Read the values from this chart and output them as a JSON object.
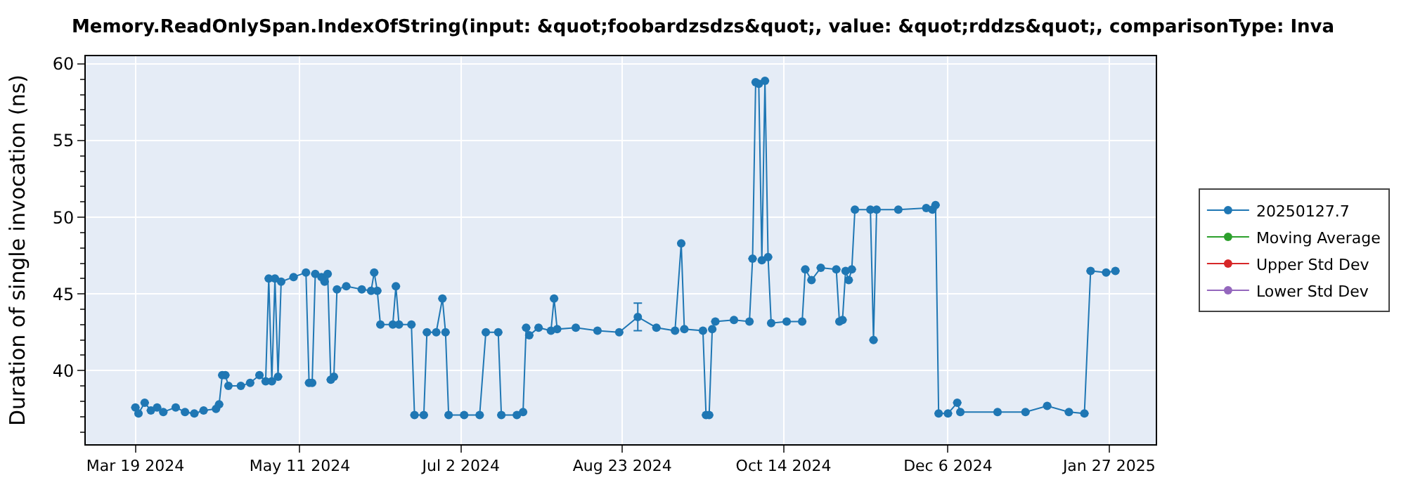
{
  "chart_data": {
    "type": "line",
    "title": "Memory.ReadOnlySpan.IndexOfString(input: &quot;foobardzsdzs&quot;, value: &quot;rddzs&quot;, comparisonType: Inva",
    "ylabel": "Duration of single invocation (ns)",
    "x": [
      "2024-03-19",
      "2024-03-20",
      "2024-03-22",
      "2024-03-24",
      "2024-03-26",
      "2024-03-28",
      "2024-04-01",
      "2024-04-04",
      "2024-04-07",
      "2024-04-10",
      "2024-04-14",
      "2024-04-15",
      "2024-04-16",
      "2024-04-17",
      "2024-04-18",
      "2024-04-22",
      "2024-04-25",
      "2024-04-28",
      "2024-04-30",
      "2024-05-01",
      "2024-05-02",
      "2024-05-03",
      "2024-05-04",
      "2024-05-05",
      "2024-05-09",
      "2024-05-13",
      "2024-05-14",
      "2024-05-15",
      "2024-05-16",
      "2024-05-18",
      "2024-05-19",
      "2024-05-20",
      "2024-05-21",
      "2024-05-22",
      "2024-05-23",
      "2024-05-26",
      "2024-05-31",
      "2024-06-03",
      "2024-06-04",
      "2024-06-05",
      "2024-06-06",
      "2024-06-10",
      "2024-06-11",
      "2024-06-12",
      "2024-06-16",
      "2024-06-17",
      "2024-06-20",
      "2024-06-21",
      "2024-06-24",
      "2024-06-26",
      "2024-06-27",
      "2024-06-28",
      "2024-07-03",
      "2024-07-08",
      "2024-07-10",
      "2024-07-14",
      "2024-07-15",
      "2024-07-20",
      "2024-07-22",
      "2024-07-23",
      "2024-07-24",
      "2024-07-27",
      "2024-07-31",
      "2024-08-01",
      "2024-08-02",
      "2024-08-08",
      "2024-08-15",
      "2024-08-22",
      "2024-08-28",
      "2024-09-03",
      "2024-09-09",
      "2024-09-11",
      "2024-09-12",
      "2024-09-18",
      "2024-09-19",
      "2024-09-20",
      "2024-09-21",
      "2024-09-22",
      "2024-09-28",
      "2024-10-03",
      "2024-10-04",
      "2024-10-05",
      "2024-10-06",
      "2024-10-07",
      "2024-10-08",
      "2024-10-09",
      "2024-10-10",
      "2024-10-15",
      "2024-10-20",
      "2024-10-21",
      "2024-10-23",
      "2024-10-26",
      "2024-10-31",
      "2024-11-01",
      "2024-11-02",
      "2024-11-03",
      "2024-11-04",
      "2024-11-05",
      "2024-11-06",
      "2024-11-11",
      "2024-11-12",
      "2024-11-13",
      "2024-11-20",
      "2024-11-29",
      "2024-12-01",
      "2024-12-02",
      "2024-12-03",
      "2024-12-06",
      "2024-12-09",
      "2024-12-10",
      "2024-12-22",
      "2024-12-31",
      "2025-01-07",
      "2025-01-14",
      "2025-01-19",
      "2025-01-21",
      "2025-01-26",
      "2025-01-29"
    ],
    "series": [
      {
        "name": "20250127.7",
        "color": "#1f77b4",
        "values": [
          37.6,
          37.2,
          37.9,
          37.4,
          37.6,
          37.3,
          37.6,
          37.3,
          37.2,
          37.4,
          37.5,
          37.8,
          39.7,
          39.7,
          39.0,
          39.0,
          39.2,
          39.7,
          39.3,
          46.0,
          39.3,
          46.0,
          39.6,
          45.8,
          46.1,
          46.4,
          39.2,
          39.2,
          46.3,
          46.1,
          45.8,
          46.3,
          39.4,
          39.6,
          45.3,
          45.5,
          45.3,
          45.2,
          46.4,
          45.2,
          43.0,
          43.0,
          45.5,
          43.0,
          43.0,
          37.1,
          37.1,
          42.5,
          42.5,
          44.7,
          42.5,
          37.1,
          37.1,
          37.1,
          42.5,
          42.5,
          37.1,
          37.1,
          37.3,
          42.8,
          42.3,
          42.8,
          42.6,
          44.7,
          42.7,
          42.8,
          42.6,
          42.5,
          43.5,
          42.8,
          42.6,
          48.3,
          42.7,
          42.6,
          37.1,
          37.1,
          42.7,
          43.2,
          43.3,
          43.2,
          47.3,
          58.8,
          58.7,
          47.2,
          58.9,
          47.4,
          43.1,
          43.2,
          43.2,
          46.6,
          45.9,
          46.7,
          46.6,
          43.2,
          43.3,
          46.5,
          45.9,
          46.6,
          50.5,
          50.5,
          42.0,
          50.5,
          50.5,
          50.6,
          50.5,
          50.8,
          37.2,
          37.2,
          37.9,
          37.3,
          37.3,
          37.3,
          37.7,
          37.3,
          37.2,
          46.5,
          46.4,
          46.5
        ],
        "errors": [
          null,
          null,
          null,
          null,
          null,
          null,
          null,
          null,
          null,
          null,
          null,
          null,
          null,
          null,
          null,
          null,
          null,
          null,
          null,
          null,
          null,
          null,
          null,
          null,
          null,
          null,
          null,
          null,
          null,
          null,
          null,
          null,
          null,
          null,
          null,
          null,
          null,
          null,
          null,
          null,
          null,
          null,
          null,
          null,
          null,
          null,
          null,
          null,
          null,
          null,
          null,
          null,
          null,
          null,
          null,
          null,
          null,
          null,
          null,
          null,
          null,
          null,
          null,
          null,
          null,
          null,
          null,
          null,
          0.9,
          null,
          null,
          null,
          null,
          null,
          null,
          null,
          null,
          null,
          null,
          null,
          null,
          null,
          null,
          null,
          null,
          null,
          null,
          null,
          null,
          null,
          null,
          null,
          null,
          null,
          null,
          null,
          null,
          null,
          null,
          null,
          null,
          null,
          null,
          null,
          null,
          null,
          null,
          null,
          null,
          null,
          null,
          null,
          null,
          null,
          null,
          null,
          null,
          null
        ]
      },
      {
        "name": "Moving Average",
        "color": "#2ca02c",
        "values": [
          null,
          null,
          null,
          null,
          null,
          null,
          null,
          null,
          null,
          null,
          null,
          null,
          null,
          null,
          null,
          null,
          null,
          null,
          null,
          null,
          null,
          null,
          null,
          null,
          null,
          null,
          null,
          null,
          null,
          null,
          null,
          null,
          null,
          null,
          null,
          null,
          null,
          null,
          null,
          null,
          null,
          null,
          null,
          null,
          null,
          null,
          null,
          null,
          null,
          null,
          null,
          null,
          null,
          null,
          null,
          null,
          null,
          null,
          null,
          null,
          null,
          null,
          null,
          null,
          null,
          null,
          null,
          null,
          null,
          null,
          null,
          null,
          null,
          null,
          null,
          null,
          null,
          null,
          null,
          null,
          null,
          null,
          null,
          null,
          null,
          null,
          null,
          null,
          null,
          null,
          null,
          null,
          null,
          null,
          null,
          null,
          null,
          null,
          null,
          null,
          null,
          null,
          null,
          null,
          null,
          null,
          null,
          null,
          null,
          null,
          null,
          null,
          null,
          null,
          null,
          null,
          null,
          null
        ]
      },
      {
        "name": "Upper Std Dev",
        "color": "#d62728",
        "values": [
          null,
          null,
          null,
          null,
          null,
          null,
          null,
          null,
          null,
          null,
          null,
          null,
          null,
          null,
          null,
          null,
          null,
          null,
          null,
          null,
          null,
          null,
          null,
          null,
          null,
          null,
          null,
          null,
          null,
          null,
          null,
          null,
          null,
          null,
          null,
          null,
          null,
          null,
          null,
          null,
          null,
          null,
          null,
          null,
          null,
          null,
          null,
          null,
          null,
          null,
          null,
          null,
          null,
          null,
          null,
          null,
          null,
          null,
          null,
          null,
          null,
          null,
          null,
          null,
          null,
          null,
          null,
          null,
          null,
          null,
          null,
          null,
          null,
          null,
          null,
          null,
          null,
          null,
          null,
          null,
          null,
          null,
          null,
          null,
          null,
          null,
          null,
          null,
          null,
          null,
          null,
          null,
          null,
          null,
          null,
          null,
          null,
          null,
          null,
          null,
          null,
          null,
          null,
          null,
          null,
          null,
          null,
          null,
          null,
          null,
          null,
          null,
          null,
          null,
          null,
          null,
          null,
          null
        ]
      },
      {
        "name": "Lower Std Dev",
        "color": "#9467bd",
        "values": [
          null,
          null,
          null,
          null,
          null,
          null,
          null,
          null,
          null,
          null,
          null,
          null,
          null,
          null,
          null,
          null,
          null,
          null,
          null,
          null,
          null,
          null,
          null,
          null,
          null,
          null,
          null,
          null,
          null,
          null,
          null,
          null,
          null,
          null,
          null,
          null,
          null,
          null,
          null,
          null,
          null,
          null,
          null,
          null,
          null,
          null,
          null,
          null,
          null,
          null,
          null,
          null,
          null,
          null,
          null,
          null,
          null,
          null,
          null,
          null,
          null,
          null,
          null,
          null,
          null,
          null,
          null,
          null,
          null,
          null,
          null,
          null,
          null,
          null,
          null,
          null,
          null,
          null,
          null,
          null,
          null,
          null,
          null,
          null,
          null,
          null,
          null,
          null,
          null,
          null,
          null,
          null,
          null,
          null,
          null,
          null,
          null,
          null,
          null,
          null,
          null,
          null,
          null,
          null,
          null,
          null,
          null,
          null,
          null,
          null,
          null,
          null,
          null,
          null,
          null,
          null,
          null,
          null
        ]
      }
    ],
    "xlim": [
      "2024-03-03",
      "2025-02-11"
    ],
    "xticks": [
      {
        "value": "2024-03-19",
        "label": "Mar 19 2024"
      },
      {
        "value": "2024-05-11",
        "label": "May 11 2024"
      },
      {
        "value": "2024-07-02",
        "label": "Jul 2 2024"
      },
      {
        "value": "2024-08-23",
        "label": "Aug 23 2024"
      },
      {
        "value": "2024-10-14",
        "label": "Oct 14 2024"
      },
      {
        "value": "2024-12-06",
        "label": "Dec 6 2024"
      },
      {
        "value": "2025-01-27",
        "label": "Jan 27 2025"
      }
    ],
    "ylim": [
      35.2,
      60.5
    ],
    "yticks": [
      {
        "value": 36,
        "label": null
      },
      {
        "value": 37,
        "label": null
      },
      {
        "value": 38,
        "label": null
      },
      {
        "value": 39,
        "label": null
      },
      40,
      {
        "value": 41,
        "label": null
      },
      {
        "value": 42,
        "label": null
      },
      {
        "value": 43,
        "label": null
      },
      {
        "value": 44,
        "label": null
      },
      45,
      {
        "value": 46,
        "label": null
      },
      {
        "value": 47,
        "label": null
      },
      {
        "value": 48,
        "label": null
      },
      {
        "value": 49,
        "label": null
      },
      50,
      {
        "value": 51,
        "label": null
      },
      {
        "value": 52,
        "label": null
      },
      {
        "value": 53,
        "label": null
      },
      {
        "value": 54,
        "label": null
      },
      55,
      {
        "value": 56,
        "label": null
      },
      {
        "value": 57,
        "label": null
      },
      {
        "value": 58,
        "label": null
      },
      {
        "value": 59,
        "label": null
      },
      60
    ],
    "grid": true,
    "legend": "right",
    "marker": "circle",
    "line_style": "solid"
  }
}
